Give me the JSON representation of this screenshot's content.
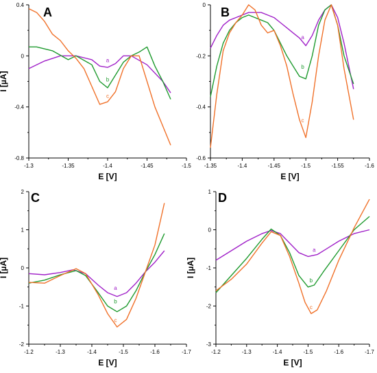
{
  "chart_data": [
    {
      "panel": "A",
      "type": "line",
      "xlabel": "E [V]",
      "ylabel": "I [µA]",
      "xlim": [
        -1.3,
        -1.5
      ],
      "ylim": [
        -0.8,
        0.4
      ],
      "xticks": [
        -1.3,
        -1.35,
        -1.4,
        -1.45,
        -1.5
      ],
      "xtick_labels": [
        "-1.3",
        "-1.35",
        "-1.4",
        "-1.45",
        "-1.5"
      ],
      "yticks": [
        -0.8,
        -0.4,
        0,
        0.4
      ],
      "ytick_labels": [
        "-0.8",
        "-0.4",
        "0",
        "0.4"
      ],
      "series": [
        {
          "name": "a",
          "color": "#a020c8",
          "x": [
            -1.3,
            -1.32,
            -1.34,
            -1.36,
            -1.38,
            -1.39,
            -1.4,
            -1.41,
            -1.42,
            -1.43,
            -1.45,
            -1.47,
            -1.48
          ],
          "y": [
            -0.1,
            -0.04,
            0.0,
            0.0,
            -0.03,
            -0.08,
            -0.09,
            -0.06,
            0.0,
            0.0,
            -0.07,
            -0.2,
            -0.29
          ],
          "label_x": -1.4,
          "label_y": -0.05
        },
        {
          "name": "b",
          "color": "#1e9a2e",
          "x": [
            -1.3,
            -1.31,
            -1.33,
            -1.35,
            -1.36,
            -1.38,
            -1.39,
            -1.4,
            -1.41,
            -1.42,
            -1.43,
            -1.44,
            -1.45,
            -1.46,
            -1.47,
            -1.48
          ],
          "y": [
            0.07,
            0.07,
            0.04,
            -0.03,
            0.0,
            -0.07,
            -0.2,
            -0.25,
            -0.15,
            -0.05,
            0.0,
            0.03,
            0.07,
            -0.08,
            -0.2,
            -0.34
          ],
          "label_x": -1.4,
          "label_y": -0.2
        },
        {
          "name": "c",
          "color": "#f07028",
          "x": [
            -1.3,
            -1.31,
            -1.32,
            -1.33,
            -1.34,
            -1.35,
            -1.36,
            -1.37,
            -1.38,
            -1.39,
            -1.4,
            -1.41,
            -1.42,
            -1.43,
            -1.44,
            -1.45,
            -1.46,
            -1.47,
            -1.48
          ],
          "y": [
            0.37,
            0.34,
            0.27,
            0.17,
            0.12,
            0.04,
            -0.02,
            -0.1,
            -0.24,
            -0.38,
            -0.36,
            -0.28,
            -0.1,
            0.0,
            0.0,
            -0.2,
            -0.4,
            -0.55,
            -0.7
          ],
          "label_x": -1.4,
          "label_y": -0.33
        }
      ]
    },
    {
      "panel": "B",
      "type": "line",
      "xlabel": "E [V]",
      "ylabel": "",
      "xlim": [
        -1.35,
        -1.6
      ],
      "ylim": [
        -0.6,
        0
      ],
      "xticks": [
        -1.35,
        -1.4,
        -1.45,
        -1.5,
        -1.55,
        -1.6
      ],
      "xtick_labels": [
        "-1.35",
        "-1.4",
        "-1.45",
        "-1.5",
        "-1.55",
        "-1.6"
      ],
      "yticks": [
        -0.6,
        -0.4,
        -0.2,
        0
      ],
      "ytick_labels": [
        "-0.6",
        "-0.4",
        "-0.2",
        "0"
      ],
      "series": [
        {
          "name": "a",
          "color": "#a020c8",
          "x": [
            -1.35,
            -1.36,
            -1.37,
            -1.38,
            -1.39,
            -1.4,
            -1.41,
            -1.42,
            -1.43,
            -1.44,
            -1.45,
            -1.46,
            -1.47,
            -1.48,
            -1.49,
            -1.5,
            -1.51,
            -1.52,
            -1.53,
            -1.54,
            -1.55,
            -1.56,
            -1.575
          ],
          "y": [
            -0.17,
            -0.12,
            -0.08,
            -0.06,
            -0.05,
            -0.04,
            -0.03,
            -0.03,
            -0.03,
            -0.04,
            -0.05,
            -0.07,
            -0.09,
            -0.11,
            -0.13,
            -0.16,
            -0.12,
            -0.06,
            -0.02,
            0.0,
            -0.05,
            -0.15,
            -0.33
          ],
          "label_x": -1.495,
          "label_y": -0.135
        },
        {
          "name": "b",
          "color": "#1e9a2e",
          "x": [
            -1.35,
            -1.36,
            -1.37,
            -1.38,
            -1.39,
            -1.4,
            -1.41,
            -1.42,
            -1.43,
            -1.44,
            -1.45,
            -1.46,
            -1.47,
            -1.48,
            -1.49,
            -1.5,
            -1.51,
            -1.52,
            -1.53,
            -1.54,
            -1.55,
            -1.56,
            -1.575
          ],
          "y": [
            -0.36,
            -0.24,
            -0.15,
            -0.1,
            -0.07,
            -0.05,
            -0.04,
            -0.05,
            -0.06,
            -0.07,
            -0.1,
            -0.15,
            -0.2,
            -0.24,
            -0.28,
            -0.29,
            -0.2,
            -0.08,
            -0.02,
            0.0,
            -0.08,
            -0.2,
            -0.31
          ],
          "label_x": -1.495,
          "label_y": -0.25
        },
        {
          "name": "c",
          "color": "#f07028",
          "x": [
            -1.35,
            -1.36,
            -1.37,
            -1.38,
            -1.39,
            -1.4,
            -1.41,
            -1.42,
            -1.43,
            -1.44,
            -1.45,
            -1.46,
            -1.47,
            -1.48,
            -1.49,
            -1.5,
            -1.51,
            -1.52,
            -1.53,
            -1.54,
            -1.55,
            -1.56,
            -1.575
          ],
          "y": [
            -0.56,
            -0.35,
            -0.18,
            -0.11,
            -0.07,
            -0.04,
            0.0,
            -0.02,
            -0.08,
            -0.11,
            -0.1,
            -0.16,
            -0.24,
            -0.35,
            -0.45,
            -0.52,
            -0.38,
            -0.2,
            -0.06,
            0.0,
            -0.08,
            -0.25,
            -0.45
          ],
          "label_x": -1.495,
          "label_y": -0.46
        }
      ]
    },
    {
      "panel": "C",
      "type": "line",
      "xlabel": "E [V]",
      "ylabel": "I [µA]",
      "xlim": [
        -1.2,
        -1.7
      ],
      "ylim": [
        -2,
        2
      ],
      "xticks": [
        -1.2,
        -1.3,
        -1.4,
        -1.5,
        -1.6,
        -1.7
      ],
      "xtick_labels": [
        "-1.2",
        "-1.3",
        "-1.4",
        "-1.5",
        "-1.6",
        "-1.7"
      ],
      "yticks": [
        -2,
        -1,
        0,
        1,
        2
      ],
      "ytick_labels": [
        "-2",
        "-1",
        "0",
        "1",
        "2"
      ],
      "series": [
        {
          "name": "a",
          "color": "#a020c8",
          "x": [
            -1.2,
            -1.25,
            -1.3,
            -1.34,
            -1.38,
            -1.42,
            -1.45,
            -1.48,
            -1.51,
            -1.54,
            -1.57,
            -1.6,
            -1.63
          ],
          "y": [
            -0.15,
            -0.18,
            -0.12,
            -0.05,
            -0.15,
            -0.45,
            -0.65,
            -0.75,
            -0.65,
            -0.4,
            -0.1,
            0.15,
            0.45
          ],
          "label_x": -1.475,
          "label_y": -0.58
        },
        {
          "name": "b",
          "color": "#1e9a2e",
          "x": [
            -1.2,
            -1.25,
            -1.3,
            -1.35,
            -1.38,
            -1.42,
            -1.45,
            -1.48,
            -1.51,
            -1.54,
            -1.57,
            -1.6,
            -1.63
          ],
          "y": [
            -0.4,
            -0.32,
            -0.18,
            -0.07,
            -0.2,
            -0.65,
            -1.0,
            -1.15,
            -1.0,
            -0.6,
            -0.1,
            0.35,
            0.9
          ],
          "label_x": -1.475,
          "label_y": -0.93
        },
        {
          "name": "c",
          "color": "#f07028",
          "x": [
            -1.2,
            -1.25,
            -1.3,
            -1.35,
            -1.38,
            -1.42,
            -1.45,
            -1.48,
            -1.51,
            -1.54,
            -1.57,
            -1.6,
            -1.63
          ],
          "y": [
            -0.38,
            -0.4,
            -0.2,
            -0.02,
            -0.15,
            -0.7,
            -1.2,
            -1.55,
            -1.35,
            -0.8,
            -0.1,
            0.6,
            1.7
          ],
          "label_x": -1.475,
          "label_y": -1.42
        }
      ]
    },
    {
      "panel": "D",
      "type": "line",
      "xlabel": "E [V]",
      "ylabel": "I [µA]",
      "xlim": [
        -1.2,
        -1.7
      ],
      "ylim": [
        -3,
        1
      ],
      "xticks": [
        -1.2,
        -1.3,
        -1.4,
        -1.5,
        -1.6,
        -1.7
      ],
      "xtick_labels": [
        "-1.2",
        "-1.3",
        "-1.4",
        "-1.5",
        "-1.6",
        "-1.7"
      ],
      "yticks": [
        -3,
        -2,
        -1,
        0,
        1
      ],
      "ytick_labels": [
        "-3",
        "-2",
        "-1",
        "0",
        "1"
      ],
      "series": [
        {
          "name": "a",
          "color": "#a020c8",
          "x": [
            -1.2,
            -1.25,
            -1.3,
            -1.35,
            -1.38,
            -1.41,
            -1.44,
            -1.47,
            -1.5,
            -1.53,
            -1.56,
            -1.6,
            -1.65,
            -1.7
          ],
          "y": [
            -0.8,
            -0.55,
            -0.3,
            -0.1,
            -0.02,
            -0.1,
            -0.35,
            -0.6,
            -0.7,
            -0.65,
            -0.5,
            -0.3,
            -0.1,
            0.0
          ],
          "label_x": -1.52,
          "label_y": -0.58
        },
        {
          "name": "b",
          "color": "#1e9a2e",
          "x": [
            -1.2,
            -1.25,
            -1.3,
            -1.35,
            -1.38,
            -1.41,
            -1.44,
            -1.47,
            -1.5,
            -1.52,
            -1.55,
            -1.6,
            -1.65,
            -1.7
          ],
          "y": [
            -1.65,
            -1.2,
            -0.75,
            -0.25,
            0.02,
            -0.15,
            -0.6,
            -1.2,
            -1.5,
            -1.45,
            -1.1,
            -0.55,
            0.0,
            0.35
          ],
          "label_x": -1.51,
          "label_y": -1.38
        },
        {
          "name": "c",
          "color": "#f07028",
          "x": [
            -1.2,
            -1.25,
            -1.3,
            -1.35,
            -1.38,
            -1.41,
            -1.44,
            -1.47,
            -1.49,
            -1.51,
            -1.53,
            -1.56,
            -1.6,
            -1.65,
            -1.7
          ],
          "y": [
            -1.6,
            -1.3,
            -0.9,
            -0.35,
            -0.05,
            -0.15,
            -0.7,
            -1.4,
            -1.9,
            -2.2,
            -2.1,
            -1.6,
            -0.8,
            0.05,
            0.8
          ],
          "label_x": -1.51,
          "label_y": -2.08
        }
      ]
    }
  ]
}
